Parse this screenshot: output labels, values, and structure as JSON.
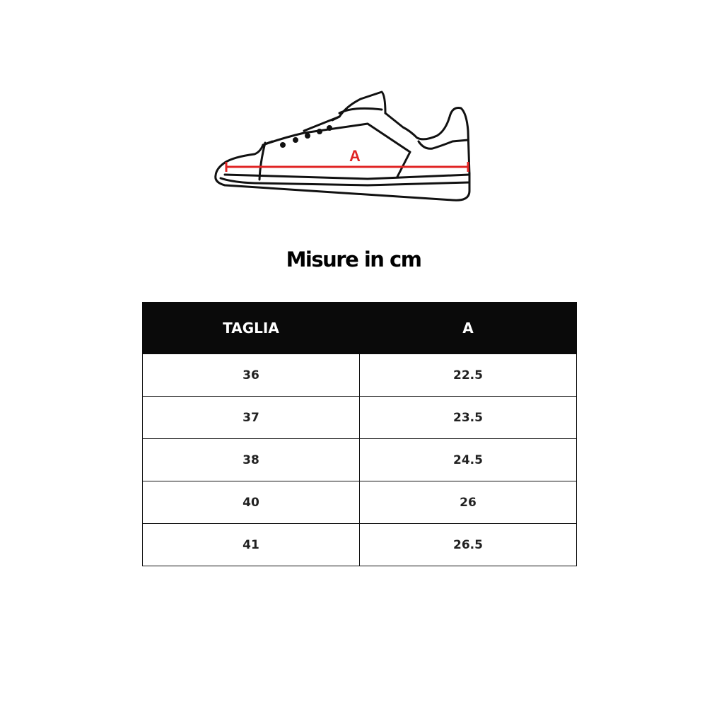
{
  "illustration": {
    "measure_label": "A",
    "measure_color": "#e02424"
  },
  "title": "Misure in cm",
  "table": {
    "headers": [
      "TAGLIA",
      "A"
    ],
    "rows": [
      [
        "36",
        "22.5"
      ],
      [
        "37",
        "23.5"
      ],
      [
        "38",
        "24.5"
      ],
      [
        "40",
        "26"
      ],
      [
        "41",
        "26.5"
      ]
    ]
  }
}
